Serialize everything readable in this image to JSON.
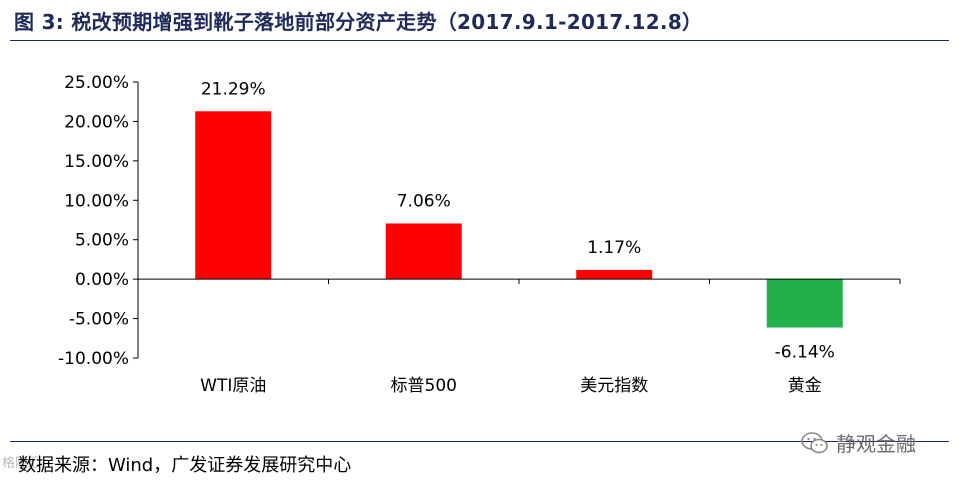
{
  "header": {
    "title": "图 3:  税改预期增强到靴子落地前部分资产走势（2017.9.1-2017.12.8）"
  },
  "footer": {
    "source": "数据来源：Wind，广发证券发展研究中心",
    "brand": "静观金融",
    "corner_mark": "格隆汇"
  },
  "colors": {
    "rule": "#1e2a5a",
    "positive_bar": "#ff0000",
    "negative_bar": "#22b04b"
  },
  "icons": {
    "brand": "wechat-icon"
  },
  "chart_data": {
    "type": "bar",
    "categories": [
      "WTI原油",
      "标普500",
      "美元指数",
      "黄金"
    ],
    "values": [
      21.29,
      7.06,
      1.17,
      -6.14
    ],
    "value_labels": [
      "21.29%",
      "7.06%",
      "1.17%",
      "-6.14%"
    ],
    "bar_colors": [
      "#ff0000",
      "#ff0000",
      "#ff0000",
      "#22b04b"
    ],
    "ylim": [
      -10,
      25
    ],
    "yticks": [
      25,
      20,
      15,
      10,
      5,
      0,
      -5,
      -10
    ],
    "ytick_labels": [
      "25.00%",
      "20.00%",
      "15.00%",
      "10.00%",
      "5.00%",
      "0.00%",
      "-5.00%",
      "-10.00%"
    ],
    "title": "",
    "xlabel": "",
    "ylabel": "",
    "grid": false,
    "legend": "none"
  }
}
